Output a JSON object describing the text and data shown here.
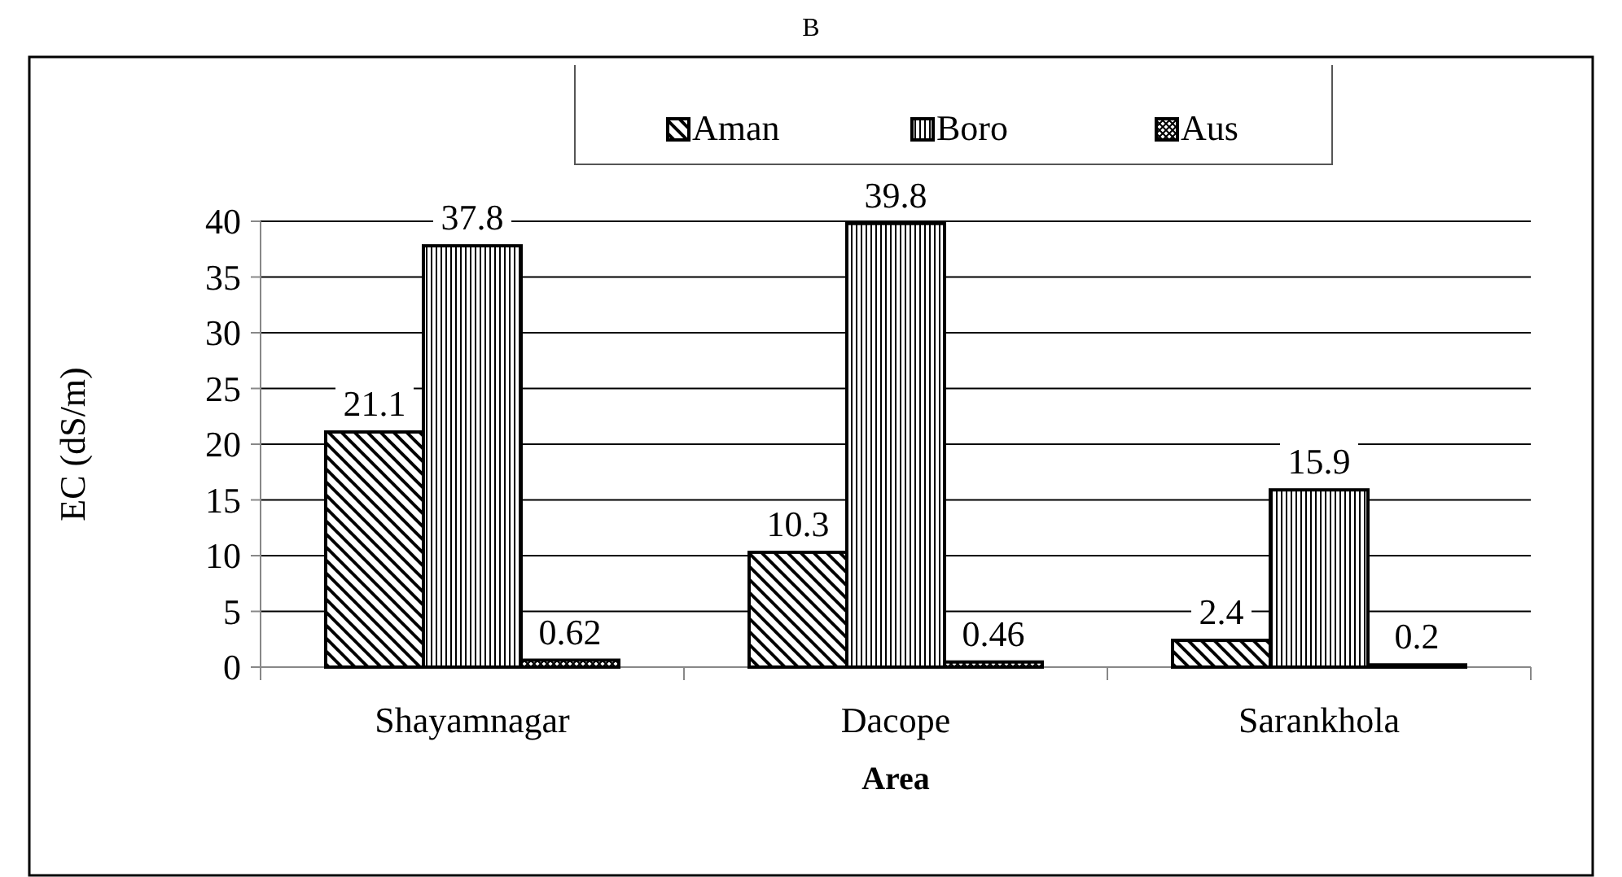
{
  "chart_data": {
    "type": "bar",
    "title": "B",
    "xlabel": "Area",
    "ylabel": "EC (dS/m)",
    "categories": [
      "Shayamnagar",
      "Dacope",
      "Sarankhola"
    ],
    "series": [
      {
        "name": "Aman",
        "color": "#000000",
        "values": [
          21.1,
          10.3,
          2.4
        ]
      },
      {
        "name": "Boro",
        "color": "#000000",
        "values": [
          37.8,
          39.8,
          15.9
        ]
      },
      {
        "name": "Aus",
        "color": "#000000",
        "values": [
          0.62,
          0.46,
          0.2
        ]
      }
    ],
    "ylim": [
      0,
      40
    ],
    "yticks": [
      0,
      5,
      10,
      15,
      20,
      25,
      30,
      35,
      40
    ],
    "grid": "y",
    "legend": "top",
    "data_labels": true
  }
}
